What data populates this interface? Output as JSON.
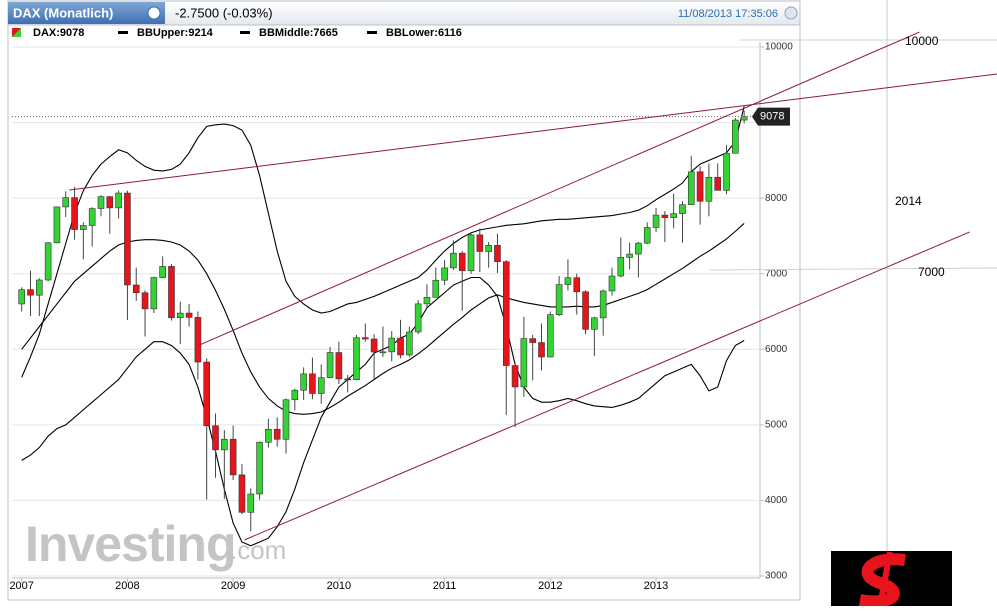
{
  "header": {
    "tab_title": "DAX (Monatlich)",
    "change": "-2.7500 (-0.03%)",
    "timestamp": "11/08/2013 17:35:06"
  },
  "legend": [
    "DAX:9078",
    "BBUpper:9214",
    "BBMiddle:7665",
    "BBLower:6116"
  ],
  "watermark": "Investing",
  "watermark_suffix": ".com",
  "chart_data": {
    "type": "candlestick",
    "open": [
      6600,
      6789,
      6716,
      6917,
      7409,
      7884,
      8007,
      7584,
      7638,
      7862,
      8020,
      7871,
      8067,
      6851,
      6748,
      6535,
      6949,
      7097,
      6418,
      6479,
      6422,
      5831,
      4988,
      4669,
      4810,
      4338,
      3843,
      4085,
      4770,
      4941,
      4809,
      5332,
      5458,
      5675,
      5415,
      5625,
      5957,
      5608,
      5598,
      6154,
      6136,
      5964,
      5966,
      6148,
      5925,
      6229,
      6601,
      6688,
      6914,
      7077,
      7272,
      7041,
      7514,
      7294,
      7376,
      7159,
      5785,
      5502,
      6141,
      6089,
      5898,
      6458,
      6856,
      6947,
      6761,
      6264,
      6416,
      6772,
      6970,
      7216,
      7260,
      7405,
      7612,
      7776,
      7742,
      7795,
      7914,
      8349,
      7959,
      8276,
      8103,
      8594,
      9033
    ],
    "high": [
      6820,
      7040,
      6940,
      7420,
      7890,
      8090,
      8150,
      7680,
      7880,
      8040,
      8030,
      8100,
      8100,
      7080,
      6780,
      6960,
      7230,
      7130,
      6630,
      6600,
      6500,
      5880,
      5150,
      4930,
      4990,
      4480,
      4160,
      4780,
      5080,
      5100,
      5350,
      5480,
      5760,
      5890,
      5800,
      6030,
      6100,
      5660,
      6190,
      6340,
      6200,
      6300,
      6240,
      6390,
      6300,
      6650,
      6860,
      7080,
      7180,
      7440,
      7300,
      7530,
      7600,
      7420,
      7530,
      7180,
      5830,
      6430,
      6190,
      6340,
      6500,
      6970,
      7190,
      7000,
      6780,
      6430,
      6790,
      7080,
      7480,
      7410,
      7420,
      7680,
      7870,
      7830,
      8060,
      7960,
      8560,
      8420,
      8460,
      8460,
      8700,
      9060,
      9160
    ],
    "low": [
      6500,
      6440,
      6440,
      6900,
      7400,
      7750,
      7450,
      7190,
      7360,
      7760,
      7530,
      7730,
      6390,
      6640,
      6170,
      6480,
      6940,
      6380,
      6070,
      6300,
      5600,
      4010,
      4300,
      4020,
      4270,
      3820,
      3590,
      4010,
      4700,
      4710,
      4620,
      5190,
      5330,
      5340,
      5280,
      5620,
      5540,
      5430,
      5590,
      6100,
      5600,
      5900,
      5840,
      5880,
      5900,
      6200,
      6560,
      6700,
      6850,
      7050,
      6510,
      7000,
      7020,
      7080,
      7010,
      5130,
      4970,
      5370,
      5590,
      5720,
      5900,
      6440,
      6780,
      6460,
      6200,
      5910,
      6180,
      6710,
      6950,
      7060,
      6950,
      7390,
      7550,
      7420,
      7600,
      7410,
      7910,
      7650,
      7760,
      8100,
      8050,
      8590,
      8990
    ],
    "close": [
      6789,
      6716,
      6917,
      7409,
      7884,
      8007,
      7584,
      7638,
      7862,
      8020,
      7871,
      8067,
      6851,
      6748,
      6535,
      6949,
      7097,
      6418,
      6479,
      6422,
      5831,
      4988,
      4669,
      4810,
      4338,
      3843,
      4085,
      4770,
      4941,
      4809,
      5332,
      5458,
      5675,
      5415,
      5625,
      5957,
      5608,
      5598,
      6154,
      6136,
      5964,
      5966,
      6148,
      5925,
      6229,
      6601,
      6688,
      6914,
      7077,
      7272,
      7041,
      7514,
      7294,
      7376,
      7159,
      5785,
      5502,
      6141,
      6089,
      5898,
      6458,
      6856,
      6947,
      6761,
      6264,
      6416,
      6772,
      6970,
      7216,
      7260,
      7405,
      7612,
      7776,
      7742,
      7795,
      7914,
      8349,
      7959,
      8276,
      8103,
      8594,
      9033,
      9078
    ],
    "up_color": "#35d235",
    "down_color": "#e8141c",
    "series": [
      {
        "name": "BBUpper",
        "color": "#000000",
        "values": [
          5630,
          5900,
          6200,
          6600,
          7000,
          7400,
          7800,
          8100,
          8300,
          8450,
          8550,
          8640,
          8600,
          8500,
          8420,
          8370,
          8360,
          8380,
          8450,
          8600,
          8800,
          8950,
          8970,
          8980,
          8960,
          8900,
          8700,
          8300,
          7800,
          7300,
          6900,
          6700,
          6600,
          6520,
          6480,
          6500,
          6550,
          6600,
          6620,
          6660,
          6700,
          6750,
          6800,
          6850,
          6900,
          6950,
          7050,
          7180,
          7300,
          7400,
          7480,
          7540,
          7580,
          7600,
          7620,
          7640,
          7650,
          7660,
          7680,
          7700,
          7710,
          7720,
          7720,
          7730,
          7740,
          7750,
          7760,
          7770,
          7790,
          7810,
          7840,
          7900,
          7980,
          8050,
          8120,
          8200,
          8350,
          8450,
          8500,
          8550,
          8600,
          8750,
          9214
        ]
      },
      {
        "name": "BBMiddle",
        "color": "#000000",
        "values": [
          6000,
          6150,
          6300,
          6450,
          6600,
          6750,
          6900,
          7000,
          7100,
          7200,
          7300,
          7380,
          7420,
          7440,
          7450,
          7450,
          7440,
          7420,
          7380,
          7300,
          7180,
          7000,
          6780,
          6530,
          6250,
          5950,
          5700,
          5500,
          5350,
          5250,
          5180,
          5150,
          5140,
          5150,
          5170,
          5230,
          5300,
          5380,
          5450,
          5520,
          5600,
          5680,
          5750,
          5800,
          5860,
          5940,
          6030,
          6130,
          6230,
          6330,
          6420,
          6520,
          6600,
          6680,
          6720,
          6680,
          6650,
          6620,
          6600,
          6580,
          6560,
          6560,
          6560,
          6570,
          6560,
          6560,
          6580,
          6620,
          6660,
          6700,
          6740,
          6790,
          6860,
          6930,
          7000,
          7070,
          7150,
          7230,
          7300,
          7380,
          7460,
          7560,
          7665
        ]
      },
      {
        "name": "BBLower",
        "color": "#000000",
        "values": [
          4530,
          4600,
          4700,
          4850,
          4950,
          5000,
          5100,
          5200,
          5300,
          5400,
          5500,
          5600,
          5750,
          5900,
          6000,
          6100,
          6100,
          6050,
          5950,
          5800,
          5500,
          5100,
          4650,
          4150,
          3700,
          3450,
          3400,
          3450,
          3500,
          3650,
          3850,
          4150,
          4500,
          4800,
          5100,
          5300,
          5500,
          5600,
          5700,
          5800,
          5950,
          6000,
          6050,
          6150,
          6200,
          6350,
          6550,
          6650,
          6750,
          6850,
          6900,
          6950,
          6950,
          6850,
          6700,
          6300,
          5800,
          5500,
          5350,
          5300,
          5300,
          5320,
          5350,
          5320,
          5280,
          5250,
          5240,
          5230,
          5260,
          5300,
          5350,
          5450,
          5550,
          5650,
          5700,
          5750,
          5800,
          5650,
          5450,
          5500,
          5850,
          6050,
          6116
        ]
      }
    ],
    "xlim": [
      -1.1,
      83.8
    ],
    "xticks": [
      {
        "value": 0,
        "label": "2007"
      },
      {
        "value": 12,
        "label": "2008"
      },
      {
        "value": 24,
        "label": "2009"
      },
      {
        "value": 36,
        "label": "2010"
      },
      {
        "value": 48,
        "label": "2011"
      },
      {
        "value": 60,
        "label": "2012"
      },
      {
        "value": 72,
        "label": "2013"
      }
    ],
    "ylim": [
      3000,
      10000
    ],
    "yticks": [
      3000,
      4000,
      5000,
      6000,
      7000,
      8000,
      9000,
      10000
    ],
    "grid": true,
    "last_price_label": "9078",
    "trendline_color": "#8b1a3a",
    "trendlines": [
      {
        "start": [
          5.4,
          8108
        ],
        "end": [
          110.7,
          9643
        ]
      },
      {
        "start": [
          20.2,
          6058
        ],
        "end": [
          101.9,
          10198
        ]
      },
      {
        "start": [
          25.3,
          3478
        ],
        "end": [
          107.6,
          7553
        ]
      }
    ],
    "annotations": [
      "10000",
      "2014",
      "7000"
    ]
  }
}
